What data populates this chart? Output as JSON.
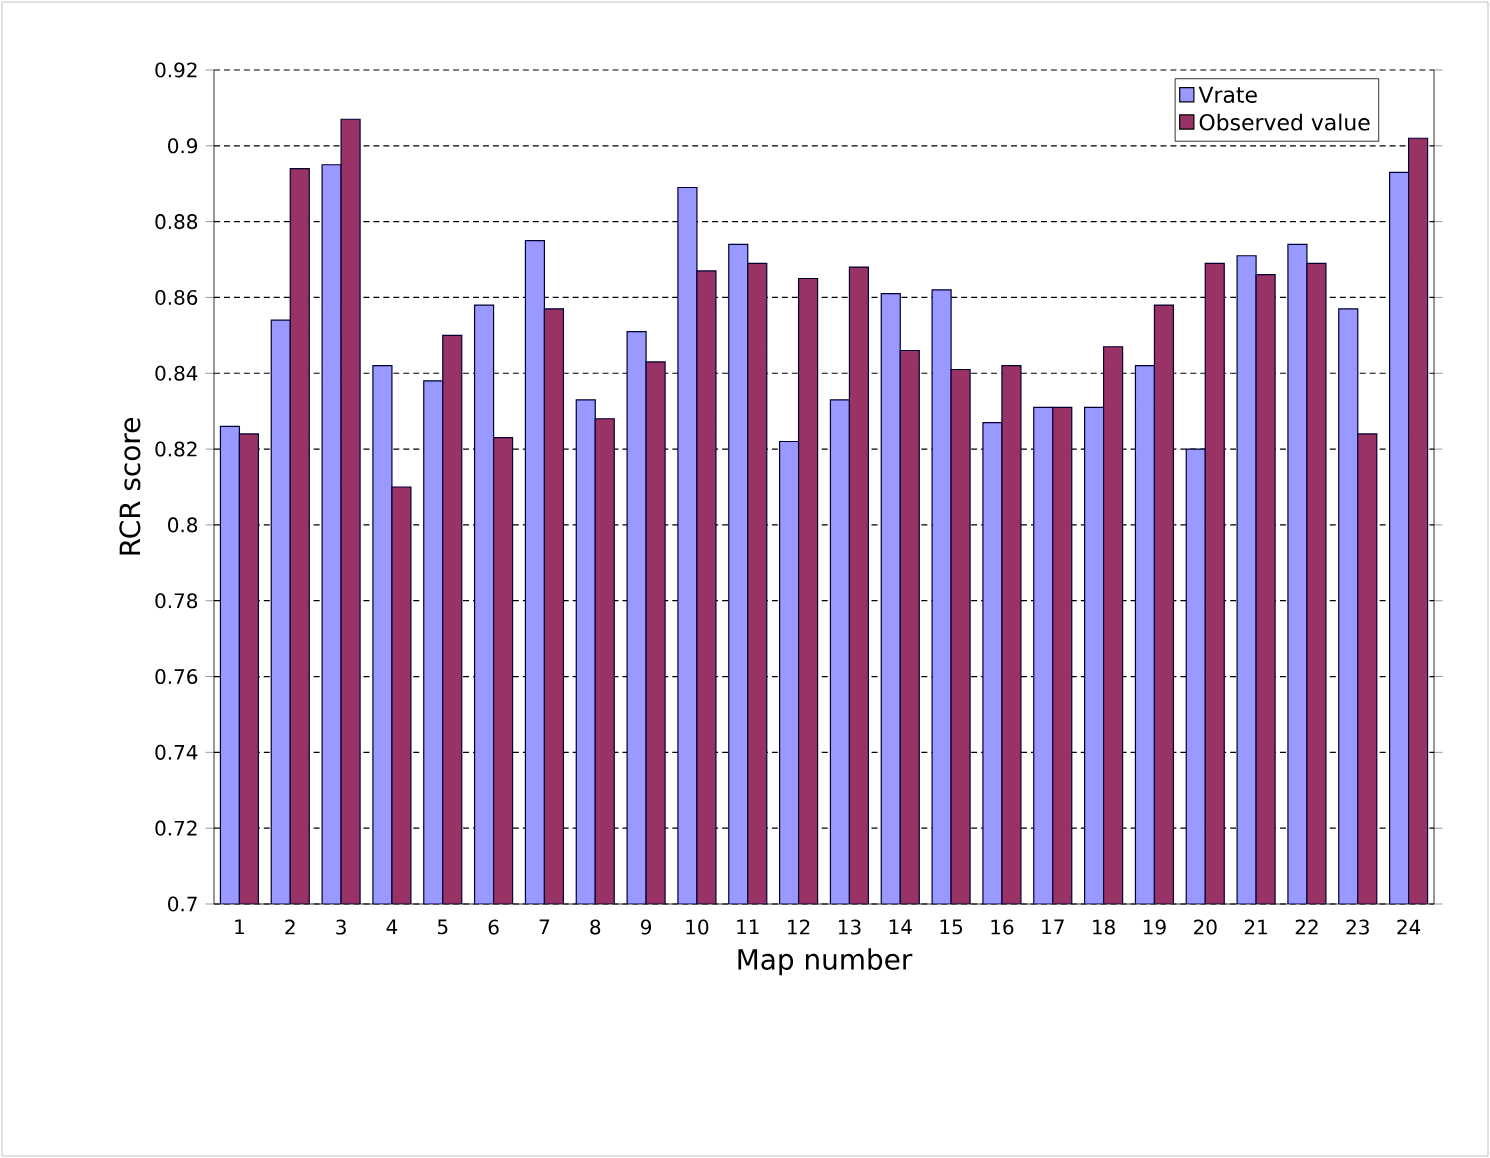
{
  "chart_data": {
    "type": "bar",
    "xlabel": "Map number",
    "ylabel": "RCR score",
    "categories": [
      "1",
      "2",
      "3",
      "4",
      "5",
      "6",
      "7",
      "8",
      "9",
      "10",
      "11",
      "12",
      "13",
      "14",
      "15",
      "16",
      "17",
      "18",
      "19",
      "20",
      "21",
      "22",
      "23",
      "24"
    ],
    "series": [
      {
        "name": "Vrate",
        "color": "#9999ff",
        "values": [
          0.826,
          0.854,
          0.895,
          0.842,
          0.838,
          0.858,
          0.875,
          0.833,
          0.851,
          0.889,
          0.874,
          0.822,
          0.833,
          0.861,
          0.862,
          0.827,
          0.831,
          0.831,
          0.842,
          0.82,
          0.871,
          0.874,
          0.857,
          0.893
        ]
      },
      {
        "name": "Observed value",
        "color": "#993366",
        "values": [
          0.824,
          0.894,
          0.907,
          0.81,
          0.85,
          0.823,
          0.857,
          0.828,
          0.843,
          0.867,
          0.869,
          0.865,
          0.868,
          0.846,
          0.841,
          0.842,
          0.831,
          0.847,
          0.858,
          0.869,
          0.866,
          0.869,
          0.824,
          0.902
        ]
      }
    ],
    "ylim": [
      0.7,
      0.92
    ],
    "yticks": [
      0.7,
      0.72,
      0.74,
      0.76,
      0.78,
      0.8,
      0.82,
      0.84,
      0.86,
      0.88,
      0.9,
      0.92
    ],
    "grid": "y",
    "legend": "top right"
  }
}
